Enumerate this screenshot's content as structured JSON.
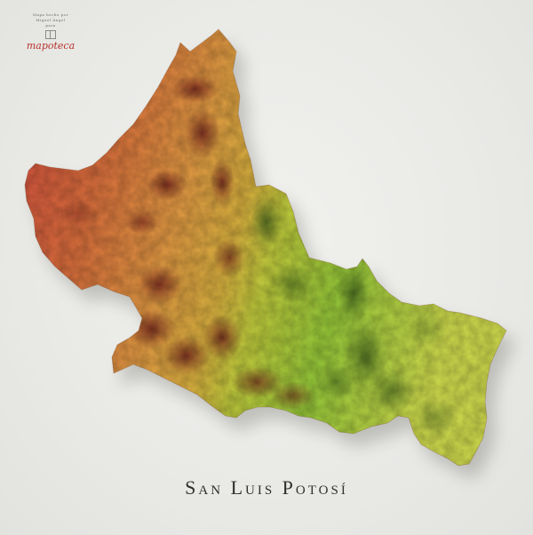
{
  "poster": {
    "title": "San Luis Potosí",
    "credit": {
      "line1": "Mapa hecho por",
      "line2": "Miguel Ángel",
      "line3": "para",
      "brand": "mapoteca"
    }
  },
  "colors": {
    "background": "#ebebe8",
    "west_high": "#c8443a",
    "central": "#d18a3e",
    "transition": "#b9c13a",
    "east_low": "#8fbf3a",
    "title_text": "#2f2f2d",
    "brand": "#b8322c"
  }
}
